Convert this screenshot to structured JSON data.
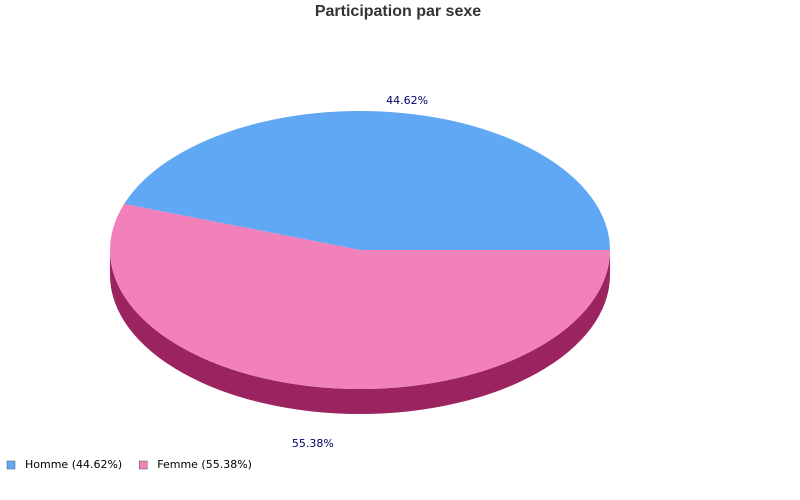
{
  "chart_data": {
    "type": "pie",
    "title": "Participation par sexe",
    "categories": [
      "Homme (44.62%)",
      "Femme (55.38%)"
    ],
    "values": [
      44.62,
      55.38
    ],
    "value_labels": [
      "44.62%",
      "55.38%"
    ],
    "colors": [
      "#60a8f4",
      "#f180bb"
    ],
    "side_colors": [
      "#3b6fa8",
      "#9a2360"
    ],
    "legend": "bottom-left"
  }
}
